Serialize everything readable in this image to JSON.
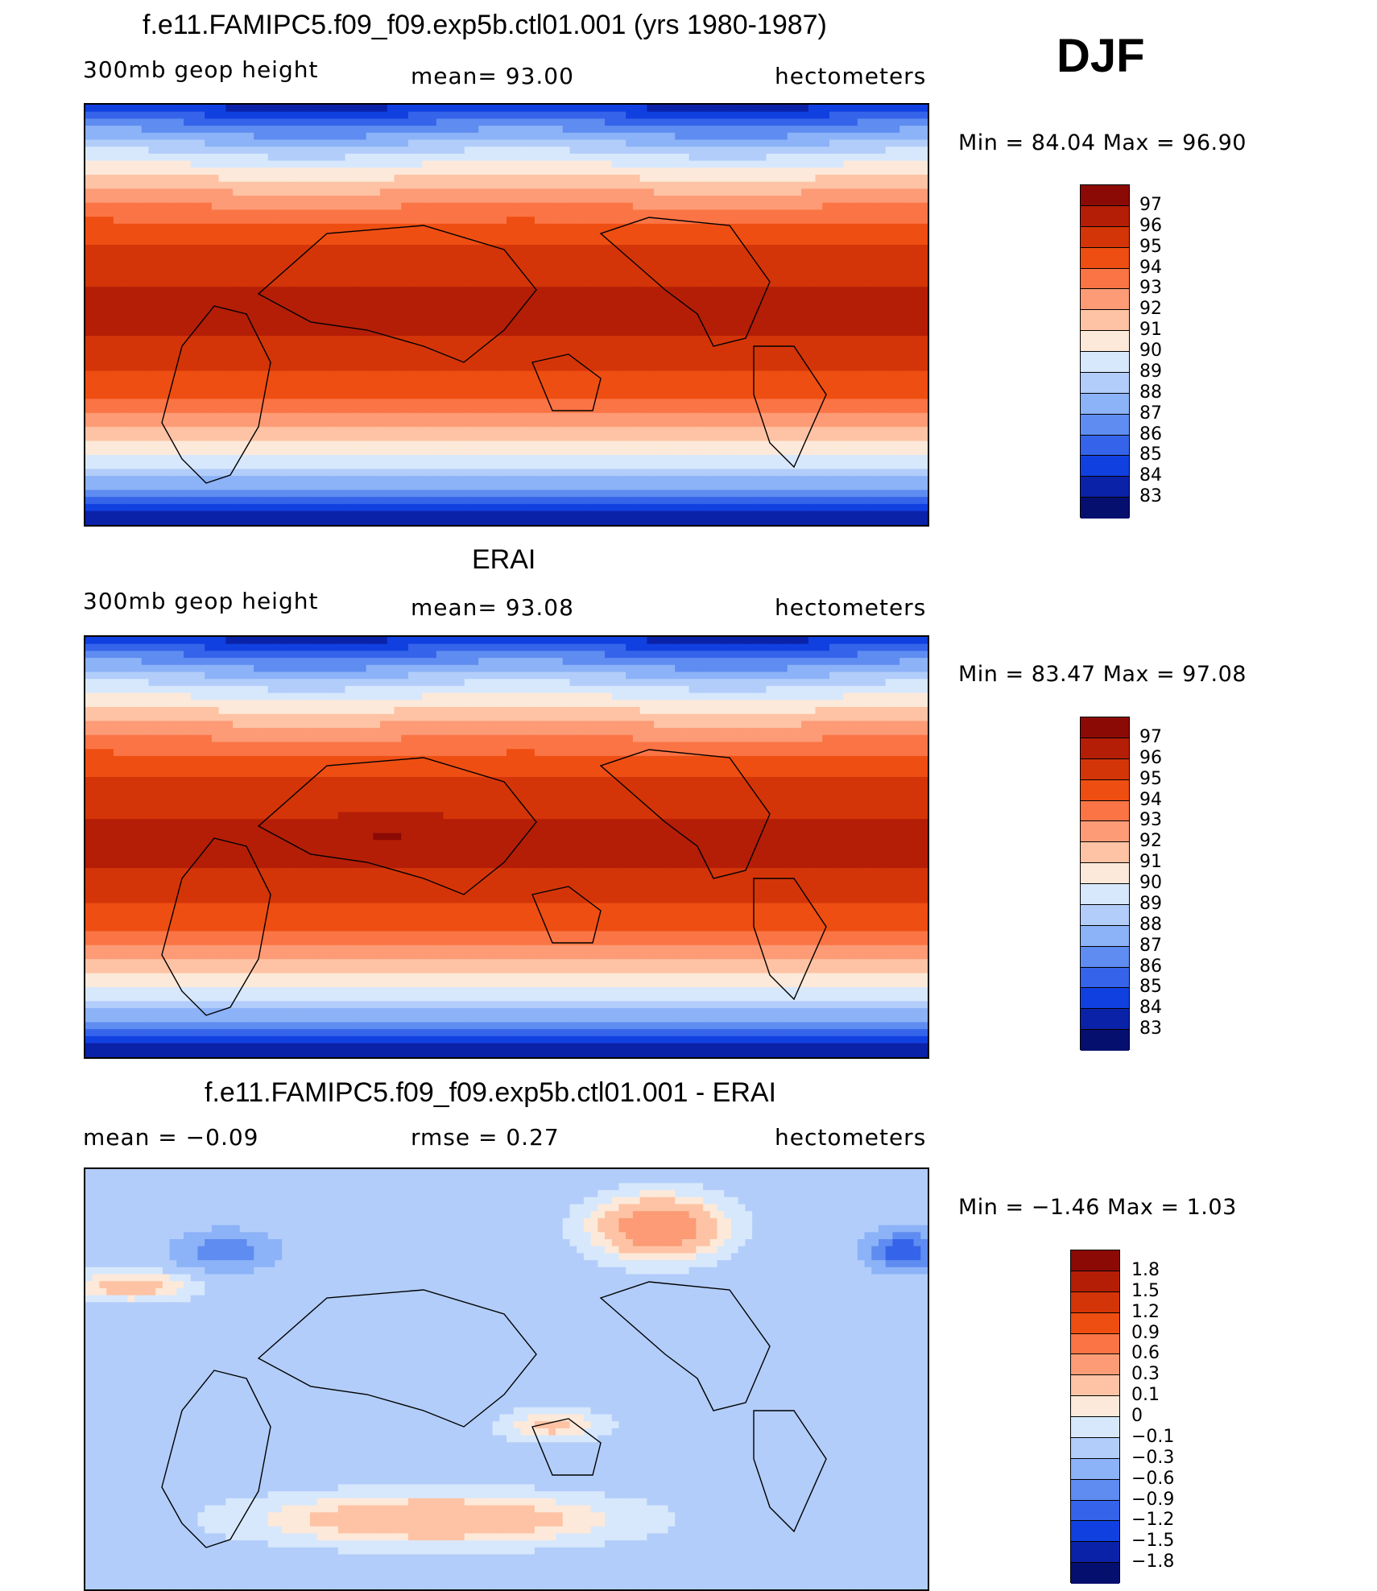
{
  "season": "DJF",
  "panels": [
    {
      "title": "f.e11.FAMIPC5.f09_f09.exp5b.ctl01.001 (yrs 1980-1987)",
      "left_label": "300mb  geop  height",
      "center_label": "mean=   93.00",
      "units": "hectometers",
      "minmax": "Min  =    84.04  Max  =    96.90",
      "colorbar": {
        "labels": [
          "97",
          "96",
          "95",
          "94",
          "93",
          "92",
          "91",
          "90",
          "89",
          "88",
          "87",
          "86",
          "85",
          "84",
          "83"
        ],
        "colors": [
          "#8b0a05",
          "#b41e06",
          "#d43508",
          "#ee4e12",
          "#fb7445",
          "#fc9b76",
          "#fdc3a4",
          "#fde9d9",
          "#d7e8fc",
          "#b2cdfa",
          "#8cb2f7",
          "#5f8cf0",
          "#3564ea",
          "#1140e0",
          "#0a22a8",
          "#050f6e"
        ]
      },
      "field": "model"
    },
    {
      "title": "ERAI",
      "left_label": "300mb  geop  height",
      "center_label": "mean=   93.08",
      "units": "hectometers",
      "minmax": "Min  =    83.47  Max  =    97.08",
      "colorbar": {
        "labels": [
          "97",
          "96",
          "95",
          "94",
          "93",
          "92",
          "91",
          "90",
          "89",
          "88",
          "87",
          "86",
          "85",
          "84",
          "83"
        ],
        "colors": [
          "#8b0a05",
          "#b41e06",
          "#d43508",
          "#ee4e12",
          "#fb7445",
          "#fc9b76",
          "#fdc3a4",
          "#fde9d9",
          "#d7e8fc",
          "#b2cdfa",
          "#8cb2f7",
          "#5f8cf0",
          "#3564ea",
          "#1140e0",
          "#0a22a8",
          "#050f6e"
        ]
      },
      "field": "obs"
    },
    {
      "title": "f.e11.FAMIPC5.f09_f09.exp5b.ctl01.001 - ERAI",
      "left_label": "mean  =    −0.09",
      "center_label": "rmse  =     0.27",
      "units": "hectometers",
      "minmax": "Min  =    −1.46  Max  =      1.03",
      "colorbar": {
        "labels": [
          "1.8",
          "1.5",
          "1.2",
          "0.9",
          "0.6",
          "0.3",
          "0.1",
          "0",
          "−0.1",
          "−0.3",
          "−0.6",
          "−0.9",
          "−1.2",
          "−1.5",
          "−1.8"
        ],
        "colors": [
          "#8b0a05",
          "#b41e06",
          "#d43508",
          "#ee4e12",
          "#fb7445",
          "#fc9b76",
          "#fdc3a4",
          "#fde9d9",
          "#d7e8fc",
          "#b2cdfa",
          "#8cb2f7",
          "#5f8cf0",
          "#3564ea",
          "#1140e0",
          "#0a22a8",
          "#050f6e"
        ]
      },
      "field": "diff"
    }
  ]
}
